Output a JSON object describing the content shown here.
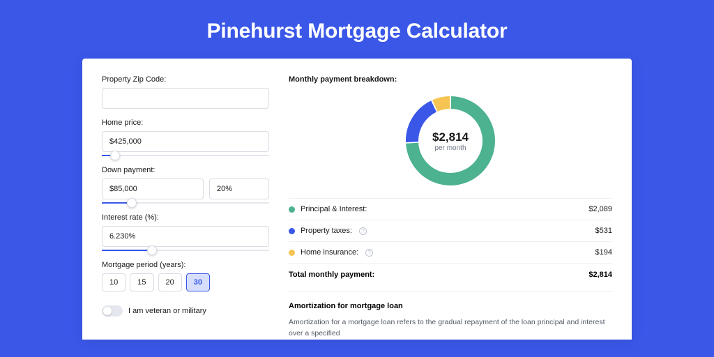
{
  "page": {
    "title": "Pinehurst Mortgage Calculator",
    "background_color": "#3a57e8",
    "card_background": "#ffffff"
  },
  "form": {
    "zip": {
      "label": "Property Zip Code:",
      "value": ""
    },
    "home_price": {
      "label": "Home price:",
      "value": "$425,000",
      "slider_percent": 8
    },
    "down_payment": {
      "label": "Down payment:",
      "amount": "$85,000",
      "percent": "20%",
      "slider_percent": 18
    },
    "interest_rate": {
      "label": "Interest rate (%):",
      "value": "6.230%",
      "slider_percent": 30
    },
    "period": {
      "label": "Mortgage period (years):",
      "options": [
        "10",
        "15",
        "20",
        "30"
      ],
      "selected": "30"
    },
    "veteran": {
      "label": "I am veteran or military",
      "checked": false
    }
  },
  "breakdown": {
    "title": "Monthly payment breakdown:",
    "center_amount": "$2,814",
    "center_sub": "per month",
    "donut": {
      "slices": [
        {
          "key": "pi",
          "value": 2089,
          "color": "#4cb28f"
        },
        {
          "key": "tax",
          "value": 531,
          "color": "#3a57e8"
        },
        {
          "key": "ins",
          "value": 194,
          "color": "#f6c452"
        }
      ],
      "ring_width": 18,
      "size": 128
    },
    "items": [
      {
        "label": "Principal & Interest:",
        "value": "$2,089",
        "color": "#4cb28f",
        "info": false
      },
      {
        "label": "Property taxes:",
        "value": "$531",
        "color": "#3a57e8",
        "info": true
      },
      {
        "label": "Home insurance:",
        "value": "$194",
        "color": "#f6c452",
        "info": true
      }
    ],
    "total": {
      "label": "Total monthly payment:",
      "value": "$2,814"
    }
  },
  "amortization": {
    "title": "Amortization for mortgage loan",
    "text": "Amortization for a mortgage loan refers to the gradual repayment of the loan principal and interest over a specified"
  }
}
